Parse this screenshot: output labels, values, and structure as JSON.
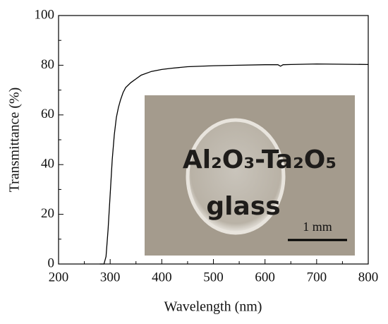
{
  "chart_data": {
    "type": "line",
    "x_label": "Wavelength  (nm)",
    "y_label": "Transmittance (%)",
    "x": [
      280,
      288,
      292,
      296,
      300,
      304,
      308,
      312,
      316,
      320,
      325,
      330,
      340,
      350,
      360,
      380,
      400,
      420,
      450,
      500,
      550,
      600,
      625,
      630,
      635,
      650,
      700,
      750,
      800
    ],
    "series": [
      {
        "name": "transmittance",
        "color": "#000000",
        "values": [
          0,
          0,
          3,
          14,
          28,
          42,
          52,
          59,
          63,
          66,
          69,
          71,
          73,
          74.5,
          76,
          77.5,
          78.3,
          78.8,
          79.4,
          79.8,
          80,
          80.2,
          80.2,
          79.6,
          80.2,
          80.3,
          80.5,
          80.4,
          80.3
        ]
      }
    ],
    "xlim": [
      200,
      800
    ],
    "ylim": [
      0,
      100
    ],
    "xticks": [
      200,
      300,
      400,
      500,
      600,
      700,
      800
    ],
    "yticks": [
      0,
      20,
      40,
      60,
      80,
      100
    ],
    "inset": {
      "line1": "Al₂O₃-Ta₂O₅",
      "line2": "glass",
      "scale_bar": "1 mm"
    }
  }
}
